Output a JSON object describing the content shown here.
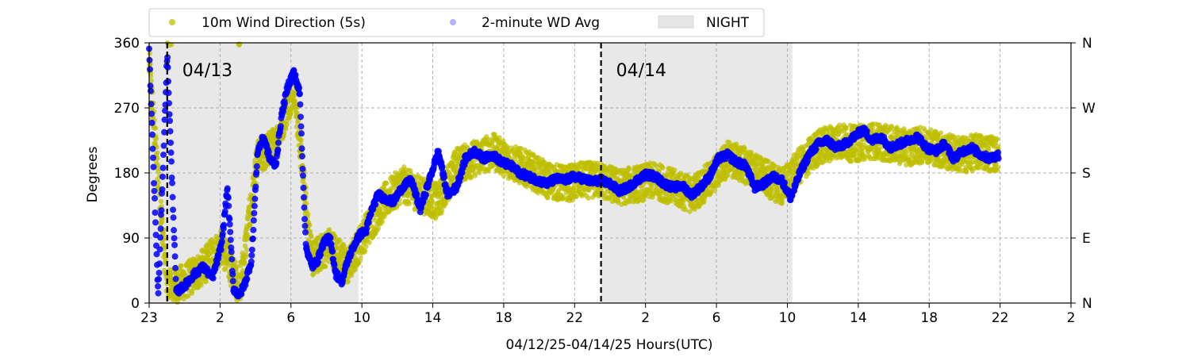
{
  "chart_data": {
    "type": "scatter",
    "title": "",
    "xlabel": "04/12/25-04/14/25  Hours(UTC)",
    "ylabel": "Degrees",
    "x_unit": "hour (UTC)",
    "xlim": [
      "04/12 23:00",
      "04/15 02:00"
    ],
    "ylim": [
      0,
      360
    ],
    "yticks": [
      0,
      90,
      180,
      270,
      360
    ],
    "yticks_right": [
      "N",
      "E",
      "S",
      "W",
      "N"
    ],
    "xticks": [
      "23",
      "2",
      "6",
      "10",
      "14",
      "18",
      "22",
      "2",
      "6",
      "10",
      "14",
      "18",
      "22",
      "2"
    ],
    "grid": true,
    "legend": {
      "placement": "top-left, above plot",
      "entries": [
        {
          "label": "10m Wind Direction (5s)",
          "color": "#bfbf00"
        },
        {
          "label": "2-minute WD Avg",
          "color": "#0000ff"
        },
        {
          "label": "NIGHT",
          "color": "#e6e6e6"
        }
      ]
    },
    "date_markers": [
      {
        "label": "04/13",
        "x": "04/13 00:00"
      },
      {
        "label": "04/14",
        "x": "04/14 00:00"
      }
    ],
    "night_spans": [
      {
        "start": "04/12 23:00",
        "end": "04/13 10:35"
      },
      {
        "start": "04/14 00:00",
        "end": "04/14 10:35"
      }
    ],
    "series": [
      {
        "name": "2-minute WD Avg",
        "color": "#0000ff",
        "x": [
          "04/12 23:00",
          "04/12 23:30",
          "04/13 00:00",
          "04/13 00:30",
          "04/13 01:00",
          "04/13 01:30",
          "04/13 02:00",
          "04/13 02:30",
          "04/13 03:00",
          "04/13 03:20",
          "04/13 03:40",
          "04/13 04:00",
          "04/13 04:20",
          "04/13 04:40",
          "04/13 05:00",
          "04/13 05:20",
          "04/13 05:40",
          "04/13 06:00",
          "04/13 06:20",
          "04/13 06:40",
          "04/13 07:00",
          "04/13 07:20",
          "04/13 07:40",
          "04/13 08:00",
          "04/13 08:20",
          "04/13 08:40",
          "04/13 09:00",
          "04/13 09:20",
          "04/13 09:40",
          "04/13 10:00",
          "04/13 10:20",
          "04/13 10:40",
          "04/13 11:00",
          "04/13 11:20",
          "04/13 11:40",
          "04/13 12:00",
          "04/13 12:30",
          "04/13 13:00",
          "04/13 13:30",
          "04/13 14:00",
          "04/13 14:30",
          "04/13 15:00",
          "04/13 15:30",
          "04/13 16:00",
          "04/13 16:30",
          "04/13 17:00",
          "04/13 17:30",
          "04/13 18:00",
          "04/13 18:30",
          "04/13 19:00",
          "04/13 19:30",
          "04/13 20:00",
          "04/13 20:30",
          "04/13 21:00",
          "04/13 21:30",
          "04/13 22:00",
          "04/13 22:30",
          "04/13 23:00",
          "04/13 23:30",
          "04/14 00:00",
          "04/14 00:30",
          "04/14 01:00",
          "04/14 01:30",
          "04/14 02:00",
          "04/14 02:30",
          "04/14 03:00",
          "04/14 03:30",
          "04/14 04:00",
          "04/14 04:30",
          "04/14 05:00",
          "04/14 05:30",
          "04/14 06:00",
          "04/14 06:30",
          "04/14 07:00",
          "04/14 07:30",
          "04/14 08:00",
          "04/14 08:30",
          "04/14 09:00",
          "04/14 09:30",
          "04/14 10:00",
          "04/14 10:30",
          "04/14 11:00",
          "04/14 11:30",
          "04/14 12:00",
          "04/14 12:30",
          "04/14 13:00",
          "04/14 13:30",
          "04/14 14:00",
          "04/14 14:30",
          "04/14 15:00",
          "04/14 15:30",
          "04/14 16:00",
          "04/14 16:30",
          "04/14 17:00",
          "04/14 17:30",
          "04/14 18:00",
          "04/14 18:30",
          "04/14 19:00",
          "04/14 19:30",
          "04/14 20:00",
          "04/14 20:30",
          "04/14 21:00",
          "04/14 21:30",
          "04/14 22:00"
        ],
        "y": [
          350,
          10,
          345,
          15,
          25,
          40,
          50,
          35,
          80,
          160,
          20,
          10,
          30,
          60,
          210,
          230,
          200,
          190,
          260,
          300,
          320,
          290,
          80,
          50,
          60,
          85,
          90,
          40,
          30,
          60,
          80,
          95,
          100,
          130,
          150,
          145,
          140,
          160,
          170,
          130,
          170,
          210,
          150,
          160,
          200,
          210,
          200,
          205,
          195,
          190,
          180,
          175,
          170,
          165,
          172,
          170,
          175,
          172,
          168,
          170,
          165,
          155,
          160,
          170,
          178,
          175,
          165,
          160,
          162,
          150,
          160,
          175,
          200,
          205,
          195,
          190,
          160,
          165,
          175,
          170,
          145,
          180,
          205,
          220,
          225,
          215,
          220,
          230,
          240,
          225,
          230,
          215,
          220,
          225,
          230,
          215,
          210,
          220,
          200,
          210,
          215,
          205,
          200,
          205
        ]
      },
      {
        "name": "10m Wind Direction (5s)",
        "color": "#bfbf00",
        "x": [
          "04/12 23:00",
          "04/13 00:00",
          "04/13 01:00",
          "04/13 02:00",
          "04/13 03:00",
          "04/13 04:00",
          "04/13 05:00",
          "04/13 06:00",
          "04/13 07:00",
          "04/13 08:00",
          "04/13 09:00",
          "04/13 10:00",
          "04/13 11:00",
          "04/13 12:00",
          "04/13 13:00",
          "04/13 14:00",
          "04/13 15:00",
          "04/13 16:00",
          "04/13 17:00",
          "04/13 18:00",
          "04/13 19:00",
          "04/13 20:00",
          "04/13 21:00",
          "04/13 22:00",
          "04/13 23:00",
          "04/14 00:00",
          "04/14 01:00",
          "04/14 02:00",
          "04/14 03:00",
          "04/14 04:00",
          "04/14 05:00",
          "04/14 06:00",
          "04/14 07:00",
          "04/14 08:00",
          "04/14 09:00",
          "04/14 10:00",
          "04/14 11:00",
          "04/14 12:00",
          "04/14 13:00",
          "04/14 14:00",
          "04/14 15:00",
          "04/14 16:00",
          "04/14 17:00",
          "04/14 18:00",
          "04/14 19:00",
          "04/14 20:00",
          "04/14 21:00",
          "04/14 22:00"
        ],
        "y": [
          330,
          20,
          30,
          50,
          80,
          20,
          200,
          220,
          300,
          60,
          80,
          50,
          100,
          140,
          165,
          150,
          140,
          190,
          200,
          210,
          195,
          185,
          170,
          165,
          170,
          170,
          160,
          165,
          170,
          160,
          150,
          170,
          200,
          190,
          175,
          160,
          190,
          215,
          225,
          220,
          225,
          220,
          215,
          220,
          210,
          205,
          210,
          205
        ],
        "spread": 25
      }
    ]
  }
}
